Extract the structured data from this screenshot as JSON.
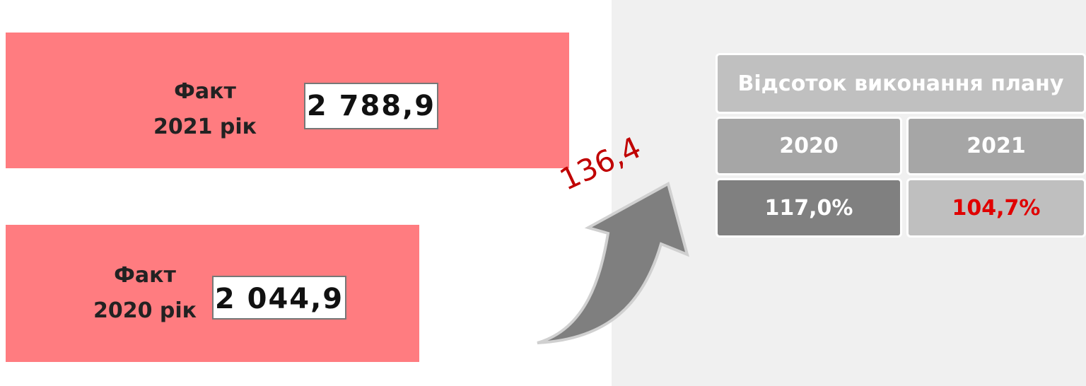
{
  "facts": [
    {
      "label": "Факт",
      "year": "2021 рік",
      "value": "2 788,9"
    },
    {
      "label": "Факт",
      "year": "2020 рік",
      "value": "2 044,9"
    }
  ],
  "growth": "136,4",
  "table": {
    "header": "Відсоток виконання плану",
    "years": [
      "2020",
      "2021"
    ],
    "values": [
      "117,0%",
      "104,7%"
    ]
  }
}
